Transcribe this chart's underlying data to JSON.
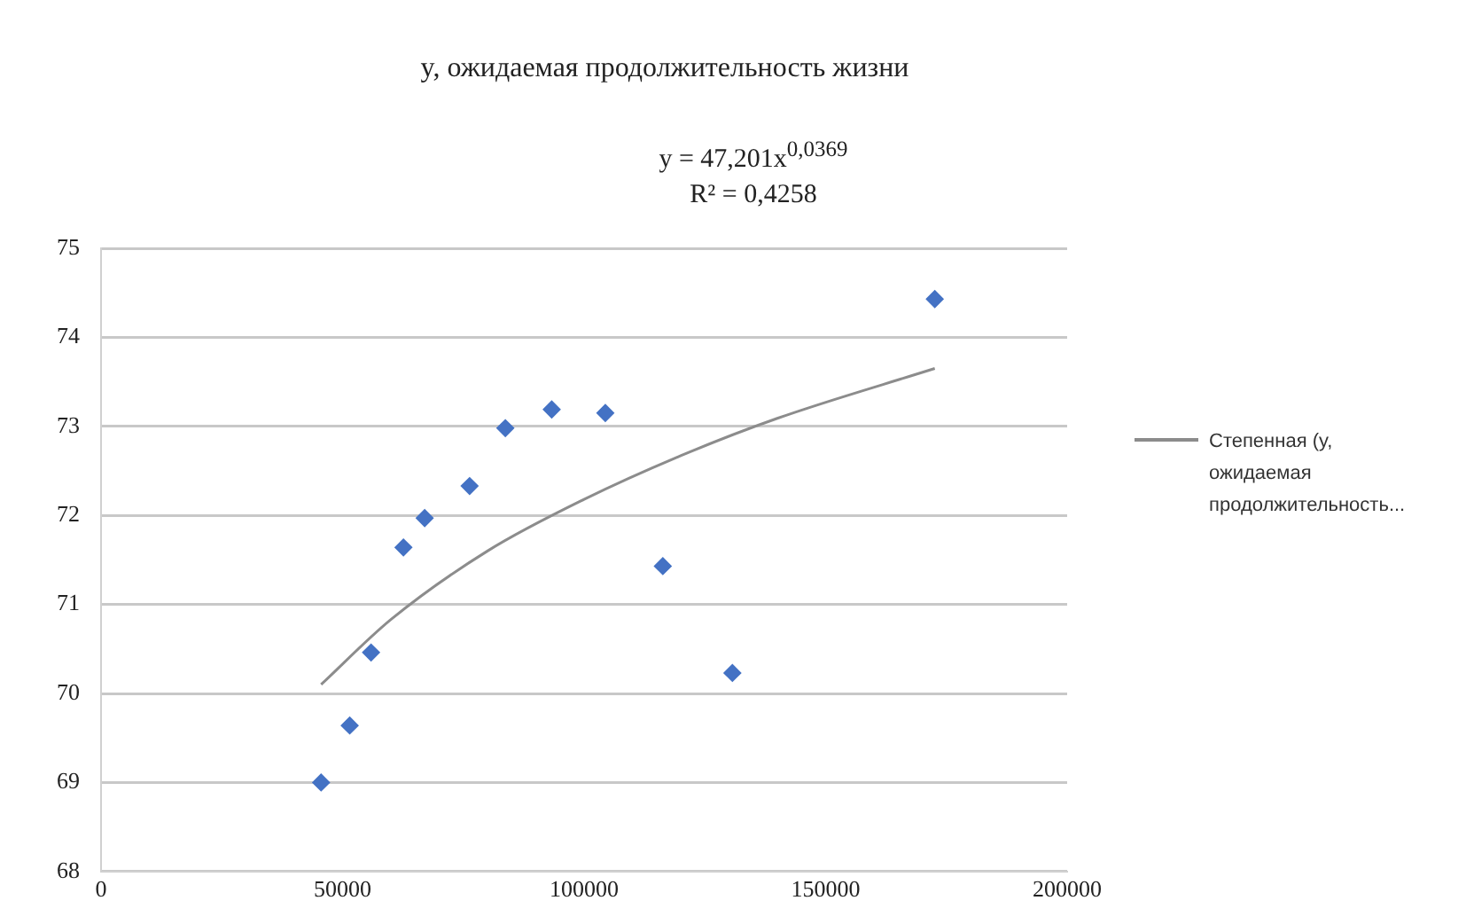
{
  "chart_data": {
    "type": "scatter",
    "title": "y, ожидаемая продолжительность жизни",
    "annotations": [
      "y = 47,201x$^{0,0369}$",
      "R² = 0,4258"
    ],
    "xlim": [
      0,
      200000
    ],
    "xticks": [
      0,
      50000,
      100000,
      150000,
      200000
    ],
    "ylim": [
      68,
      75
    ],
    "yticks": [
      68,
      69,
      70,
      71,
      72,
      73,
      74,
      75
    ],
    "grid": "y",
    "legend": "right",
    "marker": "diamond",
    "series": [
      {
        "type": "scatter",
        "color": "#4472c4",
        "x": [
          45556,
          51480,
          55900,
          62600,
          67000,
          76300,
          83700,
          93300,
          104400,
          116300,
          130700,
          172600
        ],
        "values": [
          69.0,
          69.64,
          70.46,
          71.64,
          71.97,
          72.33,
          72.98,
          73.19,
          73.15,
          71.43,
          70.23,
          74.43
        ]
      },
      {
        "type": "line",
        "name": "Степенная (y, ожидаемая продолжительность...",
        "color": "#8c8c8c",
        "marker": "none",
        "x": [
          45556,
          60000,
          80000,
          100000,
          120000,
          140000,
          172600
        ],
        "values": [
          70.1,
          70.83,
          71.6,
          72.18,
          72.67,
          73.09,
          73.65
        ]
      }
    ]
  }
}
